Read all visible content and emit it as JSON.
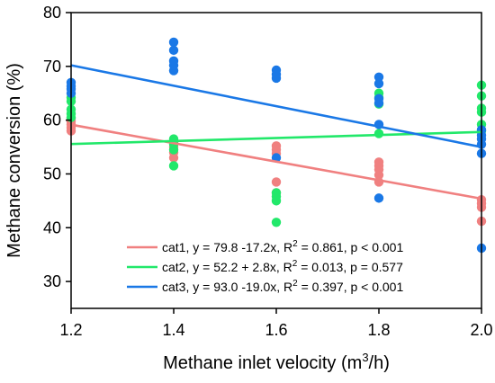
{
  "chart_data": {
    "type": "scatter",
    "title": "",
    "xlabel": "Methane inlet velocity (m",
    "xlabel_sup": "3",
    "xlabel_tail": "/h)",
    "ylabel": "Methane conversion (%)",
    "xlim": [
      1.2,
      2.0
    ],
    "ylim": [
      25,
      80
    ],
    "xticks": [
      1.2,
      1.4,
      1.6,
      1.8,
      2.0
    ],
    "xtick_labels": [
      "1.2",
      "1.4",
      "1.6",
      "1.8",
      "2.0"
    ],
    "yticks": [
      30,
      40,
      50,
      60,
      70,
      80
    ],
    "ytick_labels": [
      "30",
      "40",
      "50",
      "60",
      "70",
      "80"
    ],
    "grid": false,
    "legend_position": "bottom-right",
    "series": [
      {
        "name": "cat1",
        "color": "#f08080",
        "legend": {
          "a": "cat1, y = 79.8 -17.2x, R",
          "sup": "2",
          "b": " = 0.861, p < 0.001"
        },
        "fit": {
          "intercept": 79.8,
          "slope": -17.2
        },
        "points": [
          [
            1.2,
            58.0
          ],
          [
            1.2,
            58.6
          ],
          [
            1.2,
            59.2
          ],
          [
            1.2,
            59.8
          ],
          [
            1.2,
            60.3
          ],
          [
            1.4,
            53.0
          ],
          [
            1.4,
            54.0
          ],
          [
            1.4,
            55.0
          ],
          [
            1.4,
            55.8
          ],
          [
            1.6,
            46.5
          ],
          [
            1.6,
            48.5
          ],
          [
            1.6,
            53.8
          ],
          [
            1.6,
            54.5
          ],
          [
            1.6,
            55.2
          ],
          [
            1.8,
            48.5
          ],
          [
            1.8,
            49.8
          ],
          [
            1.8,
            50.8
          ],
          [
            1.8,
            51.5
          ],
          [
            1.8,
            52.2
          ],
          [
            2.0,
            41.2
          ],
          [
            2.0,
            43.8
          ],
          [
            2.0,
            44.5
          ],
          [
            2.0,
            45.2
          ]
        ]
      },
      {
        "name": "cat2",
        "color": "#22e86a",
        "legend": {
          "a": "cat2, y = 52.2 + 2.8x, R",
          "sup": "2",
          "b": " = 0.013, p = 0.577"
        },
        "fit": {
          "intercept": 52.2,
          "slope": 2.8
        },
        "points": [
          [
            1.2,
            60.5
          ],
          [
            1.2,
            61.2
          ],
          [
            1.2,
            62.0
          ],
          [
            1.2,
            63.5
          ],
          [
            1.2,
            64.2
          ],
          [
            1.4,
            51.5
          ],
          [
            1.4,
            54.5
          ],
          [
            1.4,
            55.5
          ],
          [
            1.4,
            56.0
          ],
          [
            1.4,
            56.5
          ],
          [
            1.6,
            41.0
          ],
          [
            1.6,
            45.0
          ],
          [
            1.6,
            45.8
          ],
          [
            1.6,
            46.5
          ],
          [
            1.8,
            57.5
          ],
          [
            1.8,
            63.0
          ],
          [
            1.8,
            64.2
          ],
          [
            1.8,
            65.0
          ],
          [
            2.0,
            58.0
          ],
          [
            2.0,
            59.2
          ],
          [
            2.0,
            61.5
          ],
          [
            2.0,
            62.2
          ],
          [
            2.0,
            64.5
          ],
          [
            2.0,
            66.5
          ]
        ]
      },
      {
        "name": "cat3",
        "color": "#1a78e6",
        "legend": {
          "a": "cat3, y = 93.0 -19.0x, R",
          "sup": "2",
          "b": " = 0.397, p < 0.001"
        },
        "fit": {
          "intercept": 93.0,
          "slope": -19.0
        },
        "points": [
          [
            1.2,
            65.0
          ],
          [
            1.2,
            65.8
          ],
          [
            1.2,
            66.3
          ],
          [
            1.2,
            67.0
          ],
          [
            1.4,
            69.2
          ],
          [
            1.4,
            70.2
          ],
          [
            1.4,
            71.0
          ],
          [
            1.4,
            73.0
          ],
          [
            1.4,
            74.5
          ],
          [
            1.6,
            53.0
          ],
          [
            1.6,
            67.8
          ],
          [
            1.6,
            68.5
          ],
          [
            1.6,
            69.3
          ],
          [
            1.8,
            45.5
          ],
          [
            1.8,
            59.2
          ],
          [
            1.8,
            63.2
          ],
          [
            1.8,
            64.0
          ],
          [
            1.8,
            66.8
          ],
          [
            1.8,
            68.0
          ],
          [
            2.0,
            36.2
          ],
          [
            2.0,
            53.8
          ],
          [
            2.0,
            55.5
          ],
          [
            2.0,
            56.5
          ],
          [
            2.0,
            57.2
          ],
          [
            2.0,
            58.2
          ]
        ]
      }
    ]
  }
}
